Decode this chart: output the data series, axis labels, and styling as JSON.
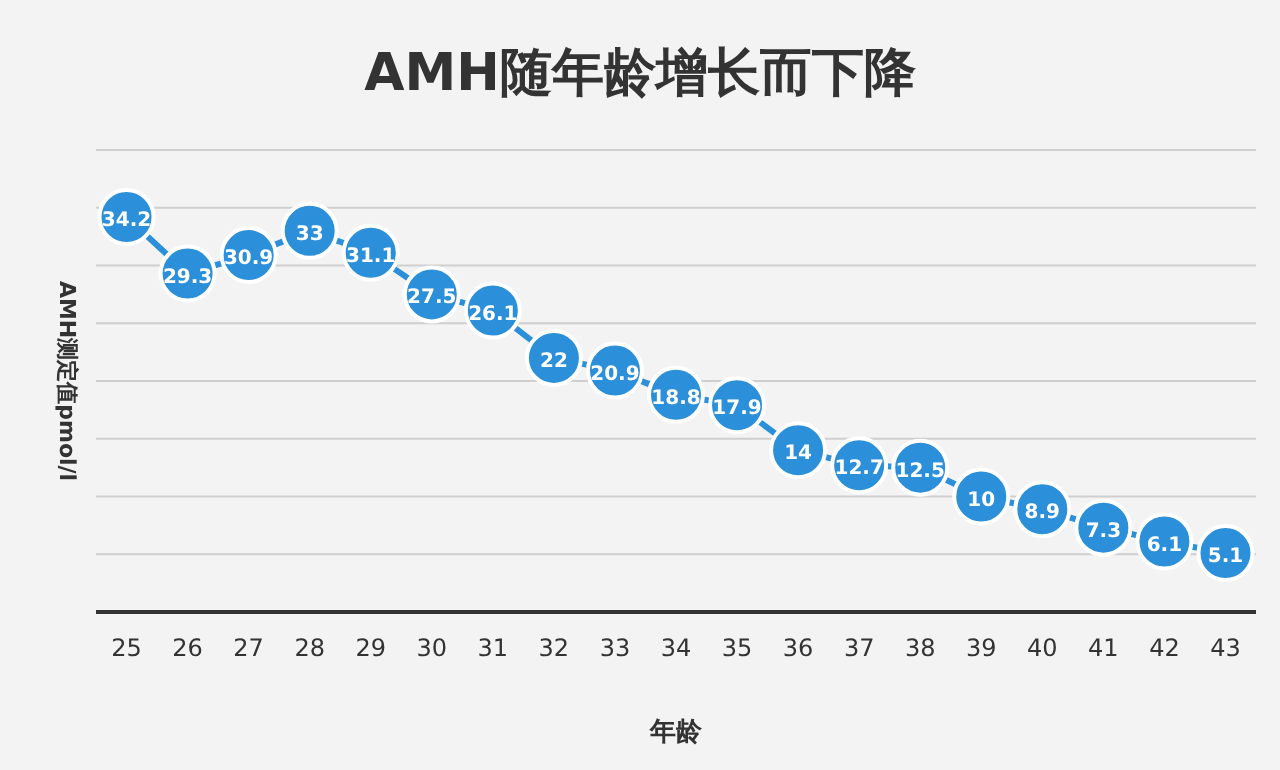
{
  "chart_data": {
    "type": "line",
    "title": "AMH随年龄增长而下降",
    "xlabel": "年龄",
    "ylabel": "AMH测定值pmol/l",
    "categories": [
      "25",
      "26",
      "27",
      "28",
      "29",
      "30",
      "31",
      "32",
      "33",
      "34",
      "35",
      "36",
      "37",
      "38",
      "39",
      "40",
      "41",
      "42",
      "43"
    ],
    "series": [
      {
        "color": "#2b8fd9",
        "values": [
          34.2,
          29.3,
          30.9,
          33,
          31.1,
          27.5,
          26.1,
          22,
          20.9,
          18.8,
          17.9,
          14,
          12.7,
          12.5,
          10,
          8.9,
          7.3,
          6.1,
          5.1
        ]
      }
    ],
    "ylim": [
      0,
      40
    ],
    "yticks": [
      {
        "value": 0,
        "label": null
      },
      {
        "value": 5,
        "label": null
      },
      {
        "value": 10,
        "label": null
      },
      {
        "value": 15,
        "label": null
      },
      {
        "value": 20,
        "label": null
      },
      {
        "value": 25,
        "label": null
      },
      {
        "value": 30,
        "label": null
      },
      {
        "value": 35,
        "label": null
      },
      {
        "value": 40,
        "label": null
      }
    ],
    "grid": "y",
    "marker": "circle",
    "line_style": "solid",
    "data_labels": true,
    "tick_labels": "x"
  }
}
